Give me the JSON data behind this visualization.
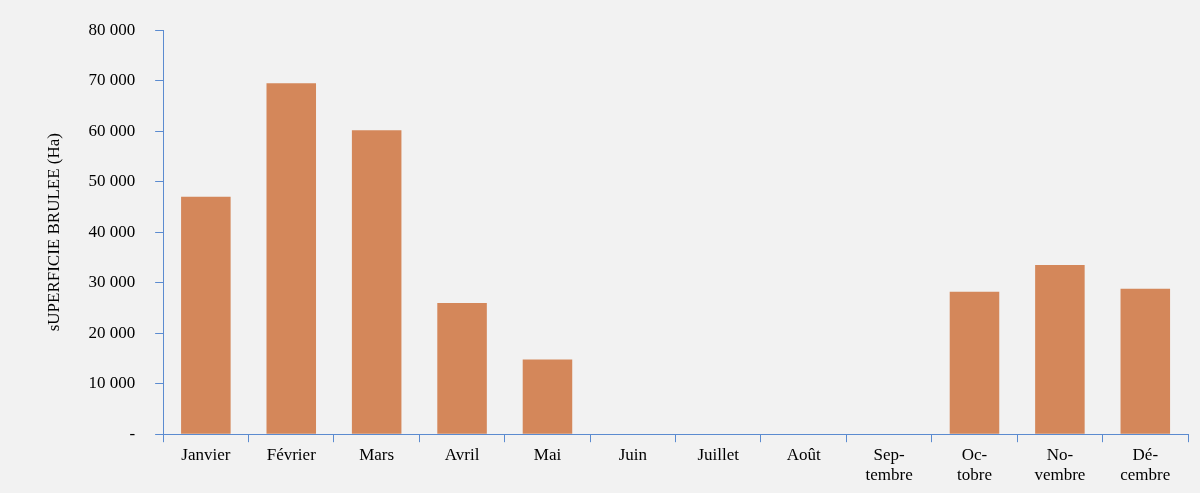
{
  "chart_data": {
    "type": "bar",
    "ylabel": "sUPERFICIE BRULEE (Ha)",
    "categories": [
      "Janvier",
      "Février",
      "Mars",
      "Avril",
      "Mai",
      "Juin",
      "Juillet",
      "Août",
      "Sep-tembre",
      "Oc-tobre",
      "No-vembre",
      "Dé-cembre"
    ],
    "values": [
      47000,
      69500,
      60200,
      26000,
      14800,
      0,
      0,
      0,
      0,
      28200,
      33500,
      28800
    ],
    "color": "#d4875a",
    "ylim": [
      0,
      80000
    ],
    "yticks": [
      {
        "value": 0,
        "label": "-"
      },
      {
        "value": 10000,
        "label": "10 000"
      },
      {
        "value": 20000,
        "label": "20 000"
      },
      {
        "value": 30000,
        "label": "30 000"
      },
      {
        "value": 40000,
        "label": "40 000"
      },
      {
        "value": 50000,
        "label": "50 000"
      },
      {
        "value": 60000,
        "label": "60 000"
      },
      {
        "value": 70000,
        "label": "70 000"
      },
      {
        "value": 80000,
        "label": "80 000"
      }
    ],
    "grid": false,
    "legend": false
  }
}
